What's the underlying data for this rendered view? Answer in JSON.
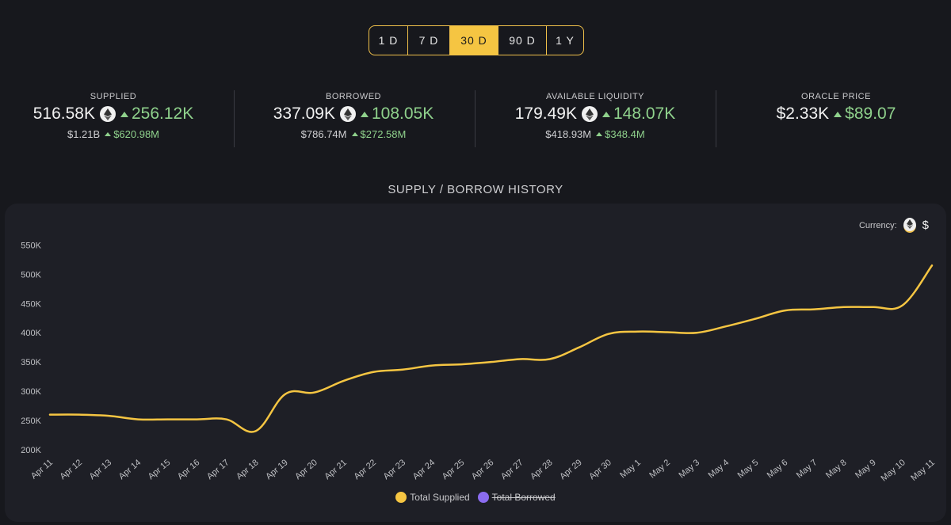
{
  "periods": [
    {
      "label": "1 D",
      "active": false
    },
    {
      "label": "7 D",
      "active": false
    },
    {
      "label": "30 D",
      "active": true
    },
    {
      "label": "90 D",
      "active": false
    },
    {
      "label": "1 Y",
      "active": false
    }
  ],
  "stats": [
    {
      "label": "SUPPLIED",
      "value": "516.58K",
      "delta": "256.12K",
      "usd": "$1.21B",
      "usd_delta": "$620.98M",
      "has_eth": true
    },
    {
      "label": "BORROWED",
      "value": "337.09K",
      "delta": "108.05K",
      "usd": "$786.74M",
      "usd_delta": "$272.58M",
      "has_eth": true
    },
    {
      "label": "AVAILABLE LIQUIDITY",
      "value": "179.49K",
      "delta": "148.07K",
      "usd": "$418.93M",
      "usd_delta": "$348.4M",
      "has_eth": true
    },
    {
      "label": "ORACLE PRICE",
      "value": "$2.33K",
      "delta": "$89.07",
      "usd": "",
      "usd_delta": "",
      "has_eth": false
    }
  ],
  "history_title": "SUPPLY / BORROW HISTORY",
  "currency": {
    "label": "Currency:",
    "usd_symbol": "$",
    "selected": "eth"
  },
  "colors": {
    "supplied": "#f5c542",
    "borrowed": "#8b6cf0",
    "accent": "#f0c04a",
    "positive": "#8fd18c"
  },
  "legend": [
    {
      "label": "Total Supplied",
      "color": "#f5c542",
      "hidden": false
    },
    {
      "label": "Total Borrowed",
      "color": "#8b6cf0",
      "hidden": true
    }
  ],
  "chart_data": {
    "type": "line",
    "categories": [
      "Apr 11",
      "Apr 12",
      "Apr 13",
      "Apr 14",
      "Apr 15",
      "Apr 16",
      "Apr 17",
      "Apr 18",
      "Apr 19",
      "Apr 20",
      "Apr 21",
      "Apr 22",
      "Apr 23",
      "Apr 24",
      "Apr 25",
      "Apr 26",
      "Apr 27",
      "Apr 28",
      "Apr 29",
      "Apr 30",
      "May 1",
      "May 2",
      "May 3",
      "May 4",
      "May 5",
      "May 6",
      "May 7",
      "May 8",
      "May 9",
      "May 10",
      "May 11"
    ],
    "y_ticks": [
      "200K",
      "250K",
      "300K",
      "350K",
      "400K",
      "450K",
      "500K",
      "550K"
    ],
    "ylim": [
      200000,
      560000
    ],
    "series": [
      {
        "name": "Total Supplied",
        "color": "#f5c542",
        "values": [
          260000,
          260000,
          258000,
          252000,
          252000,
          252000,
          252000,
          232000,
          295000,
          298000,
          318000,
          333000,
          337000,
          344000,
          346000,
          350000,
          355000,
          355000,
          375000,
          398000,
          402000,
          401000,
          400000,
          411000,
          424000,
          438000,
          440000,
          444000,
          444000,
          447000,
          515000
        ]
      }
    ]
  }
}
